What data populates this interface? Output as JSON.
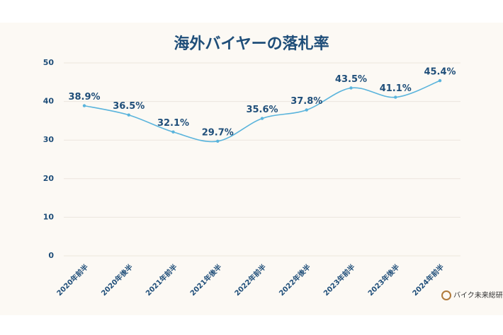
{
  "chart_data": {
    "type": "line",
    "title": "海外バイヤーの落札率",
    "categories": [
      "2020年前半",
      "2020年後半",
      "2021年前半",
      "2021年後半",
      "2022年前半",
      "2022年後半",
      "2023年前半",
      "2023年後半",
      "2024年前半"
    ],
    "series": [
      {
        "color": "#5ab4dc",
        "values": [
          38.9,
          36.5,
          32.1,
          29.7,
          35.6,
          37.8,
          43.5,
          41.1,
          45.4
        ],
        "value_labels": [
          "38.9%",
          "36.5%",
          "32.1%",
          "29.7%",
          "35.6%",
          "37.8%",
          "43.5%",
          "41.1%",
          "45.4%"
        ]
      }
    ],
    "ylim": [
      0,
      50
    ],
    "yticks": [
      0,
      10,
      20,
      30,
      40,
      50
    ],
    "grid": true,
    "logo": "バイク未来総研"
  }
}
